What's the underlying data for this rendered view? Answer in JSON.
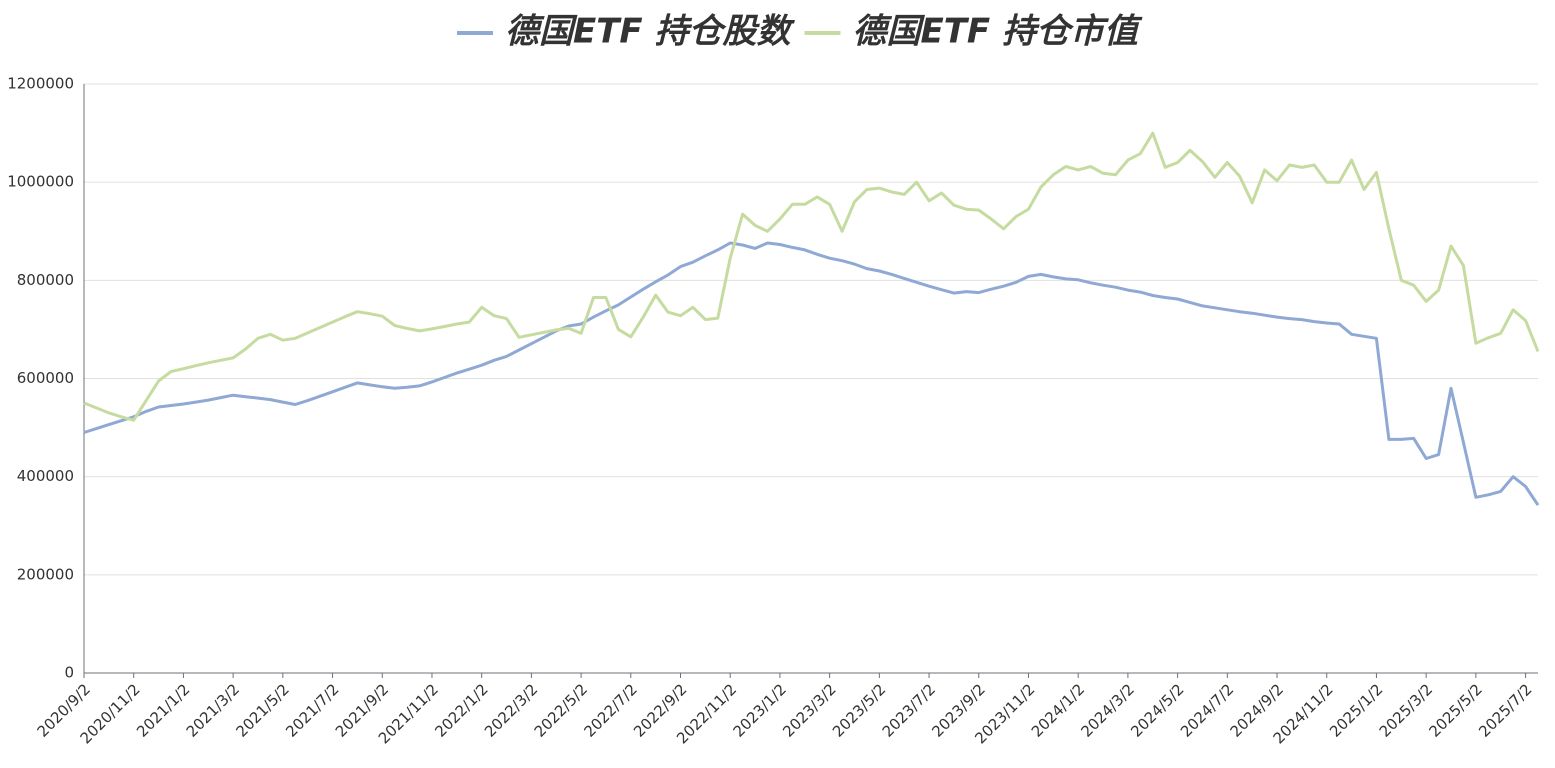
{
  "chart_data": {
    "type": "line",
    "categories": [
      "2020/9/2",
      null,
      null,
      null,
      "2020/11/2",
      null,
      null,
      null,
      "2021/1/2",
      null,
      null,
      null,
      "2021/3/2",
      null,
      null,
      null,
      "2021/5/2",
      null,
      null,
      null,
      "2021/7/2",
      null,
      null,
      null,
      "2021/9/2",
      null,
      null,
      null,
      "2021/11/2",
      null,
      null,
      null,
      "2022/1/2",
      null,
      null,
      null,
      "2022/3/2",
      null,
      null,
      null,
      "2022/5/2",
      null,
      null,
      null,
      "2022/7/2",
      null,
      null,
      null,
      "2022/9/2",
      null,
      null,
      null,
      "2022/11/2",
      null,
      null,
      null,
      "2023/1/2",
      null,
      null,
      null,
      "2023/3/2",
      null,
      null,
      null,
      "2023/5/2",
      null,
      null,
      null,
      "2023/7/2",
      null,
      null,
      null,
      "2023/9/2",
      null,
      null,
      null,
      "2023/11/2",
      null,
      null,
      null,
      "2024/1/2",
      null,
      null,
      null,
      "2024/3/2",
      null,
      null,
      null,
      "2024/5/2",
      null,
      null,
      null,
      "2024/7/2",
      null,
      null,
      null,
      "2024/9/2",
      null,
      null,
      null,
      "2024/11/2",
      null,
      null,
      null,
      "2025/1/2",
      null,
      null,
      null,
      "2025/3/2",
      null,
      null,
      null,
      "2025/5/2",
      null,
      null,
      null,
      "2025/7/2",
      null
    ],
    "series": [
      {
        "name": "德国ETF 持仓股数",
        "color": "#8fa8d4",
        "values": [
          490000,
          498000,
          506000,
          514000,
          522000,
          533000,
          542000,
          545000,
          548000,
          552000,
          556000,
          561000,
          566000,
          563000,
          560000,
          557000,
          552000,
          547000,
          555000,
          564000,
          573000,
          582000,
          591000,
          587000,
          583000,
          580000,
          582000,
          585000,
          593000,
          602000,
          611000,
          619000,
          627000,
          637000,
          645000,
          658000,
          671000,
          684000,
          697000,
          707000,
          711000,
          725000,
          738000,
          750000,
          766000,
          782000,
          797000,
          811000,
          828000,
          837000,
          850000,
          862000,
          876000,
          872000,
          865000,
          876000,
          873000,
          867000,
          862000,
          853000,
          845000,
          840000,
          833000,
          824000,
          819000,
          812000,
          804000,
          796000,
          788000,
          781000,
          774000,
          777000,
          775000,
          782000,
          788000,
          796000,
          808000,
          812000,
          807000,
          803000,
          801000,
          795000,
          790000,
          786000,
          780000,
          776000,
          769000,
          765000,
          762000,
          755000,
          748000,
          744000,
          740000,
          736000,
          733000,
          729000,
          725000,
          722000,
          720000,
          716000,
          713000,
          711000,
          690000,
          686000,
          682000,
          476000,
          476000,
          478000,
          437000,
          445000,
          580000,
          470000,
          358000,
          363000,
          370000,
          400000,
          380000,
          342000
        ]
      },
      {
        "name": "德国ETF 持仓市值",
        "color": "#c5dba0",
        "values": [
          550000,
          540000,
          530000,
          522000,
          515000,
          555000,
          595000,
          614000,
          620000,
          626000,
          632000,
          637000,
          642000,
          660000,
          682000,
          690000,
          678000,
          682000,
          693000,
          704000,
          715000,
          726000,
          736000,
          732000,
          727000,
          708000,
          702000,
          697000,
          701000,
          706000,
          711000,
          715000,
          745000,
          728000,
          722000,
          684000,
          689000,
          694000,
          699000,
          702000,
          692000,
          765000,
          765000,
          700000,
          685000,
          725000,
          770000,
          735000,
          728000,
          745000,
          720000,
          723000,
          845000,
          935000,
          912000,
          900000,
          925000,
          955000,
          955000,
          970000,
          955000,
          900000,
          960000,
          985000,
          988000,
          980000,
          975000,
          1000000,
          962000,
          978000,
          953000,
          945000,
          943000,
          925000,
          905000,
          930000,
          945000,
          990000,
          1015000,
          1032000,
          1025000,
          1032000,
          1018000,
          1015000,
          1045000,
          1058000,
          1100000,
          1030000,
          1040000,
          1065000,
          1042000,
          1010000,
          1040000,
          1012000,
          958000,
          1025000,
          1003000,
          1035000,
          1030000,
          1035000,
          1000000,
          1000000,
          1045000,
          985000,
          1020000,
          905000,
          800000,
          790000,
          757000,
          780000,
          870000,
          830000,
          672000,
          683000,
          692000,
          740000,
          718000,
          655000
        ]
      }
    ],
    "ylim": [
      0,
      1200000
    ],
    "yticks": [
      0,
      200000,
      400000,
      600000,
      800000,
      1000000,
      1200000
    ],
    "grid": true
  }
}
